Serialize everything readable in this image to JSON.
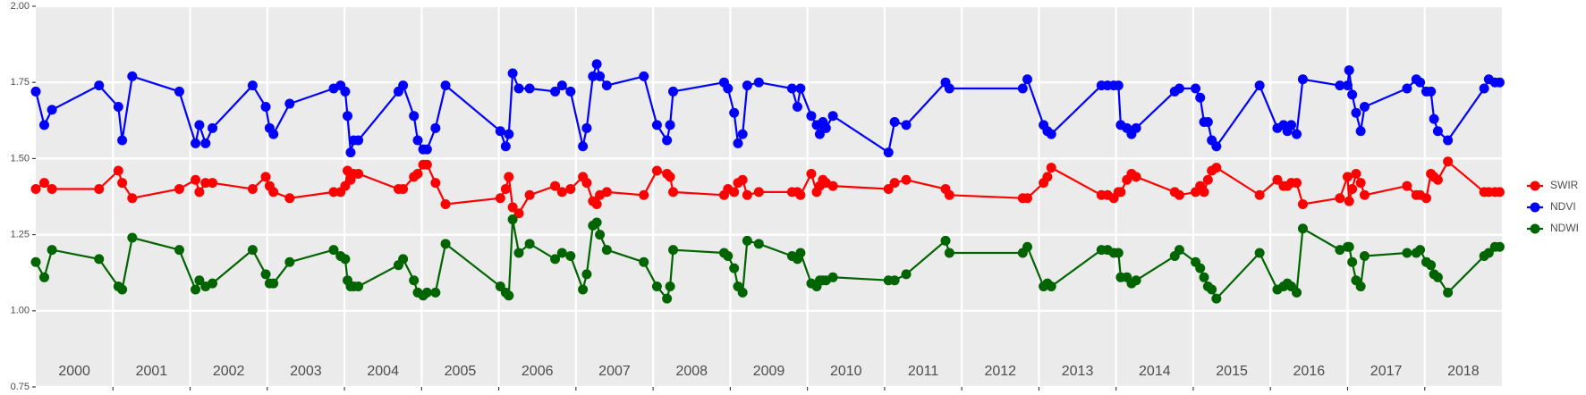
{
  "chart_data": {
    "type": "line",
    "x": [
      2000.0,
      2000.11,
      2000.21,
      2000.82,
      2001.07,
      2001.12,
      2001.25,
      2001.86,
      2002.07,
      2002.12,
      2002.2,
      2002.29,
      2002.81,
      2002.98,
      2003.03,
      2003.08,
      2003.29,
      2003.86,
      2003.95,
      2004.01,
      2004.04,
      2004.08,
      2004.12,
      2004.18,
      2004.7,
      2004.76,
      2004.9,
      2004.95,
      2005.02,
      2005.07,
      2005.18,
      2005.31,
      2006.02,
      2006.09,
      2006.13,
      2006.18,
      2006.26,
      2006.4,
      2006.73,
      2006.82,
      2006.93,
      2007.09,
      2007.14,
      2007.22,
      2007.27,
      2007.31,
      2007.4,
      2007.88,
      2008.05,
      2008.18,
      2008.22,
      2008.26,
      2008.92,
      2008.97,
      2009.05,
      2009.1,
      2009.16,
      2009.22,
      2009.37,
      2009.8,
      2009.87,
      2009.91,
      2010.05,
      2010.12,
      2010.16,
      2010.2,
      2010.24,
      2010.33,
      2011.05,
      2011.13,
      2011.28,
      2011.79,
      2011.84,
      2012.79,
      2012.85,
      2013.06,
      2013.11,
      2013.16,
      2013.81,
      2013.89,
      2013.97,
      2014.03,
      2014.06,
      2014.14,
      2014.2,
      2014.26,
      2014.76,
      2014.82,
      2015.03,
      2015.09,
      2015.14,
      2015.19,
      2015.24,
      2015.3,
      2015.86,
      2016.09,
      2016.17,
      2016.22,
      2016.27,
      2016.34,
      2016.42,
      2016.9,
      2017.0,
      2017.02,
      2017.06,
      2017.11,
      2017.17,
      2017.22,
      2017.77,
      2017.89,
      2017.94,
      2018.02,
      2018.08,
      2018.12,
      2018.17,
      2018.3,
      2018.77,
      2018.83,
      2018.91,
      2018.97
    ],
    "series": [
      {
        "name": "SWIR",
        "color": "#ff0000",
        "values": [
          1.4,
          1.42,
          1.4,
          1.4,
          1.46,
          1.42,
          1.37,
          1.4,
          1.43,
          1.39,
          1.42,
          1.42,
          1.4,
          1.44,
          1.41,
          1.39,
          1.37,
          1.39,
          1.39,
          1.41,
          1.46,
          1.43,
          1.45,
          1.45,
          1.4,
          1.4,
          1.44,
          1.45,
          1.48,
          1.48,
          1.42,
          1.35,
          1.37,
          1.4,
          1.44,
          1.34,
          1.32,
          1.38,
          1.41,
          1.39,
          1.4,
          1.44,
          1.42,
          1.36,
          1.35,
          1.38,
          1.39,
          1.38,
          1.46,
          1.45,
          1.44,
          1.39,
          1.38,
          1.4,
          1.39,
          1.42,
          1.43,
          1.38,
          1.39,
          1.39,
          1.39,
          1.38,
          1.45,
          1.39,
          1.41,
          1.43,
          1.42,
          1.41,
          1.4,
          1.42,
          1.43,
          1.4,
          1.38,
          1.37,
          1.37,
          1.42,
          1.44,
          1.47,
          1.38,
          1.38,
          1.37,
          1.39,
          1.39,
          1.43,
          1.45,
          1.44,
          1.39,
          1.38,
          1.39,
          1.41,
          1.39,
          1.43,
          1.46,
          1.47,
          1.38,
          1.43,
          1.41,
          1.41,
          1.42,
          1.42,
          1.35,
          1.37,
          1.44,
          1.36,
          1.4,
          1.45,
          1.42,
          1.38,
          1.41,
          1.38,
          1.38,
          1.37,
          1.45,
          1.44,
          1.43,
          1.49,
          1.39,
          1.39,
          1.39,
          1.39
        ]
      },
      {
        "name": "NDVI",
        "color": "#0000ff",
        "values": [
          1.72,
          1.61,
          1.66,
          1.74,
          1.67,
          1.56,
          1.77,
          1.72,
          1.55,
          1.61,
          1.55,
          1.6,
          1.74,
          1.67,
          1.6,
          1.58,
          1.68,
          1.73,
          1.74,
          1.72,
          1.64,
          1.52,
          1.56,
          1.56,
          1.72,
          1.74,
          1.64,
          1.56,
          1.53,
          1.53,
          1.6,
          1.74,
          1.59,
          1.54,
          1.58,
          1.78,
          1.73,
          1.73,
          1.72,
          1.74,
          1.72,
          1.54,
          1.6,
          1.77,
          1.81,
          1.77,
          1.74,
          1.77,
          1.61,
          1.56,
          1.61,
          1.72,
          1.75,
          1.73,
          1.65,
          1.55,
          1.58,
          1.74,
          1.75,
          1.73,
          1.67,
          1.73,
          1.64,
          1.61,
          1.58,
          1.62,
          1.6,
          1.64,
          1.52,
          1.62,
          1.61,
          1.75,
          1.73,
          1.73,
          1.76,
          1.61,
          1.59,
          1.58,
          1.74,
          1.74,
          1.74,
          1.74,
          1.61,
          1.6,
          1.58,
          1.6,
          1.72,
          1.73,
          1.73,
          1.7,
          1.62,
          1.62,
          1.56,
          1.54,
          1.74,
          1.6,
          1.61,
          1.59,
          1.61,
          1.58,
          1.76,
          1.74,
          1.74,
          1.79,
          1.71,
          1.65,
          1.59,
          1.67,
          1.73,
          1.76,
          1.75,
          1.72,
          1.72,
          1.63,
          1.59,
          1.56,
          1.73,
          1.76,
          1.75,
          1.75
        ]
      },
      {
        "name": "NDWI",
        "color": "#006400",
        "values": [
          1.16,
          1.11,
          1.2,
          1.17,
          1.08,
          1.07,
          1.24,
          1.2,
          1.07,
          1.1,
          1.08,
          1.09,
          1.2,
          1.12,
          1.09,
          1.09,
          1.16,
          1.2,
          1.18,
          1.17,
          1.1,
          1.08,
          1.08,
          1.08,
          1.15,
          1.17,
          1.1,
          1.06,
          1.05,
          1.06,
          1.06,
          1.22,
          1.08,
          1.06,
          1.05,
          1.3,
          1.19,
          1.22,
          1.17,
          1.19,
          1.18,
          1.07,
          1.12,
          1.28,
          1.29,
          1.25,
          1.2,
          1.16,
          1.08,
          1.04,
          1.08,
          1.2,
          1.19,
          1.18,
          1.14,
          1.08,
          1.06,
          1.23,
          1.22,
          1.18,
          1.17,
          1.19,
          1.09,
          1.08,
          1.1,
          1.1,
          1.1,
          1.11,
          1.1,
          1.1,
          1.12,
          1.23,
          1.19,
          1.19,
          1.21,
          1.08,
          1.09,
          1.08,
          1.2,
          1.2,
          1.19,
          1.19,
          1.11,
          1.11,
          1.09,
          1.1,
          1.18,
          1.2,
          1.16,
          1.14,
          1.11,
          1.08,
          1.07,
          1.04,
          1.19,
          1.07,
          1.08,
          1.09,
          1.08,
          1.06,
          1.27,
          1.2,
          1.21,
          1.21,
          1.16,
          1.1,
          1.08,
          1.18,
          1.19,
          1.19,
          1.2,
          1.16,
          1.15,
          1.12,
          1.11,
          1.06,
          1.18,
          1.19,
          1.21,
          1.21
        ]
      }
    ],
    "year_labels": [
      "2000",
      "2001",
      "2002",
      "2003",
      "2004",
      "2005",
      "2006",
      "2007",
      "2008",
      "2009",
      "2010",
      "2011",
      "2012",
      "2013",
      "2014",
      "2015",
      "2016",
      "2017",
      "2018"
    ],
    "xlim": [
      2000,
      2019
    ],
    "xticks": [
      2001,
      2002,
      2003,
      2004,
      2005,
      2006,
      2007,
      2008,
      2009,
      2010,
      2011,
      2012,
      2013,
      2014,
      2015,
      2016,
      2017,
      2018
    ],
    "ylim": [
      0.75,
      2.0
    ],
    "yticks": [
      0.75,
      {
        "value": 1,
        "label": "1.00"
      },
      1.25,
      {
        "value": 1.5,
        "label": "1.50"
      },
      1.75,
      {
        "value": 2,
        "label": "2.00"
      }
    ],
    "grid": true,
    "legend": "right"
  }
}
